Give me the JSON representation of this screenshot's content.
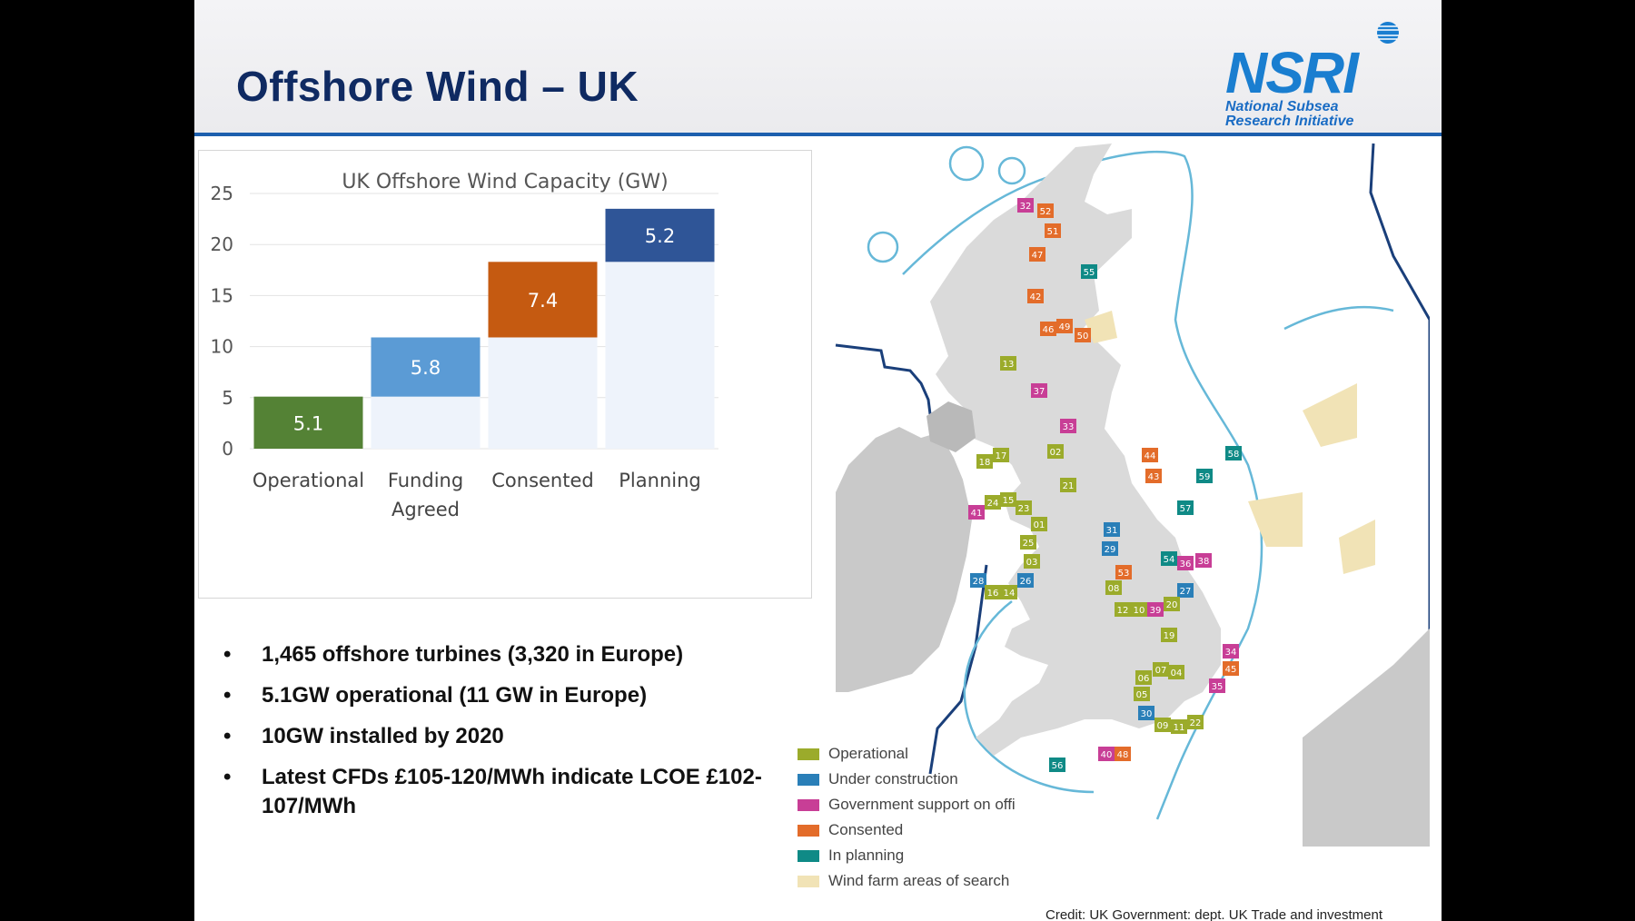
{
  "slide": {
    "title": "Offshore Wind – UK",
    "logo": {
      "name": "NSRI",
      "line1": "National Subsea",
      "line2": "Research Initiative"
    }
  },
  "chart_data": {
    "type": "bar",
    "title": "UK Offshore Wind Capacity (GW)",
    "categories": [
      "Operational",
      "Funding Agreed",
      "Consented",
      "Planning"
    ],
    "category_lines": [
      [
        "Operational"
      ],
      [
        "Funding",
        "Agreed"
      ],
      [
        "Consented"
      ],
      [
        "Planning"
      ]
    ],
    "values": [
      5.1,
      5.8,
      7.4,
      5.2
    ],
    "data_labels": [
      "5.1",
      "5.8",
      "7.4",
      "5.2"
    ],
    "stacking": "waterfall",
    "ylim": [
      0,
      25
    ],
    "yticks": [
      0,
      5,
      10,
      15,
      20,
      25
    ],
    "grid": true,
    "colors": [
      "#548235",
      "#5b9bd5",
      "#c55a11",
      "#2f5597"
    ],
    "base_color": "#eef3fb"
  },
  "bullets": [
    "1,465 offshore turbines (3,320 in Europe)",
    "5.1GW operational (11 GW in Europe)",
    "10GW installed by 2020",
    "Latest CFDs £105-120/MWh indicate LCOE £102-107/MWh"
  ],
  "map": {
    "sites": [
      {
        "id": "32",
        "status": "government"
      },
      {
        "id": "52",
        "status": "consented"
      },
      {
        "id": "51",
        "status": "consented"
      },
      {
        "id": "47",
        "status": "consented"
      },
      {
        "id": "55",
        "status": "planning"
      },
      {
        "id": "42",
        "status": "consented"
      },
      {
        "id": "46",
        "status": "consented"
      },
      {
        "id": "49",
        "status": "consented"
      },
      {
        "id": "50",
        "status": "consented"
      },
      {
        "id": "13",
        "status": "operational"
      },
      {
        "id": "37",
        "status": "government"
      },
      {
        "id": "33",
        "status": "government"
      },
      {
        "id": "02",
        "status": "operational"
      },
      {
        "id": "18",
        "status": "operational"
      },
      {
        "id": "17",
        "status": "operational"
      },
      {
        "id": "21",
        "status": "operational"
      },
      {
        "id": "44",
        "status": "consented"
      },
      {
        "id": "43",
        "status": "consented"
      },
      {
        "id": "58",
        "status": "planning"
      },
      {
        "id": "59",
        "status": "planning"
      },
      {
        "id": "41",
        "status": "government"
      },
      {
        "id": "24",
        "status": "operational"
      },
      {
        "id": "15",
        "status": "operational"
      },
      {
        "id": "23",
        "status": "operational"
      },
      {
        "id": "01",
        "status": "operational"
      },
      {
        "id": "25",
        "status": "operational"
      },
      {
        "id": "03",
        "status": "operational"
      },
      {
        "id": "31",
        "status": "construction"
      },
      {
        "id": "29",
        "status": "construction"
      },
      {
        "id": "57",
        "status": "planning"
      },
      {
        "id": "54",
        "status": "planning"
      },
      {
        "id": "36",
        "status": "government"
      },
      {
        "id": "38",
        "status": "government"
      },
      {
        "id": "53",
        "status": "consented"
      },
      {
        "id": "27",
        "status": "construction"
      },
      {
        "id": "28",
        "status": "construction"
      },
      {
        "id": "26",
        "status": "construction"
      },
      {
        "id": "16",
        "status": "operational"
      },
      {
        "id": "14",
        "status": "operational"
      },
      {
        "id": "08",
        "status": "operational"
      },
      {
        "id": "12",
        "status": "operational"
      },
      {
        "id": "10",
        "status": "operational"
      },
      {
        "id": "39",
        "status": "government"
      },
      {
        "id": "20",
        "status": "operational"
      },
      {
        "id": "19",
        "status": "operational"
      },
      {
        "id": "34",
        "status": "government"
      },
      {
        "id": "45",
        "status": "consented"
      },
      {
        "id": "06",
        "status": "operational"
      },
      {
        "id": "07",
        "status": "operational"
      },
      {
        "id": "04",
        "status": "operational"
      },
      {
        "id": "05",
        "status": "operational"
      },
      {
        "id": "35",
        "status": "government"
      },
      {
        "id": "30",
        "status": "construction"
      },
      {
        "id": "09",
        "status": "operational"
      },
      {
        "id": "11",
        "status": "operational"
      },
      {
        "id": "22",
        "status": "operational"
      },
      {
        "id": "40",
        "status": "government"
      },
      {
        "id": "48",
        "status": "consented"
      },
      {
        "id": "56",
        "status": "planning"
      }
    ],
    "legend": [
      {
        "label": "Operational",
        "color": "#9bab2b"
      },
      {
        "label": "Under construction",
        "color": "#2a7fb8"
      },
      {
        "label": "Government support on offi",
        "color": "#c83e96"
      },
      {
        "label": "Consented",
        "color": "#e36c2a"
      },
      {
        "label": "In planning",
        "color": "#0f8a86"
      },
      {
        "label": "Wind farm areas of search",
        "color": "#f1e3b6"
      }
    ],
    "status_colors": {
      "operational": "#9bab2b",
      "construction": "#2a7fb8",
      "government": "#c83e96",
      "consented": "#e36c2a",
      "planning": "#0f8a86"
    },
    "credit": "Credit: UK Government: dept. UK Trade and investment"
  }
}
